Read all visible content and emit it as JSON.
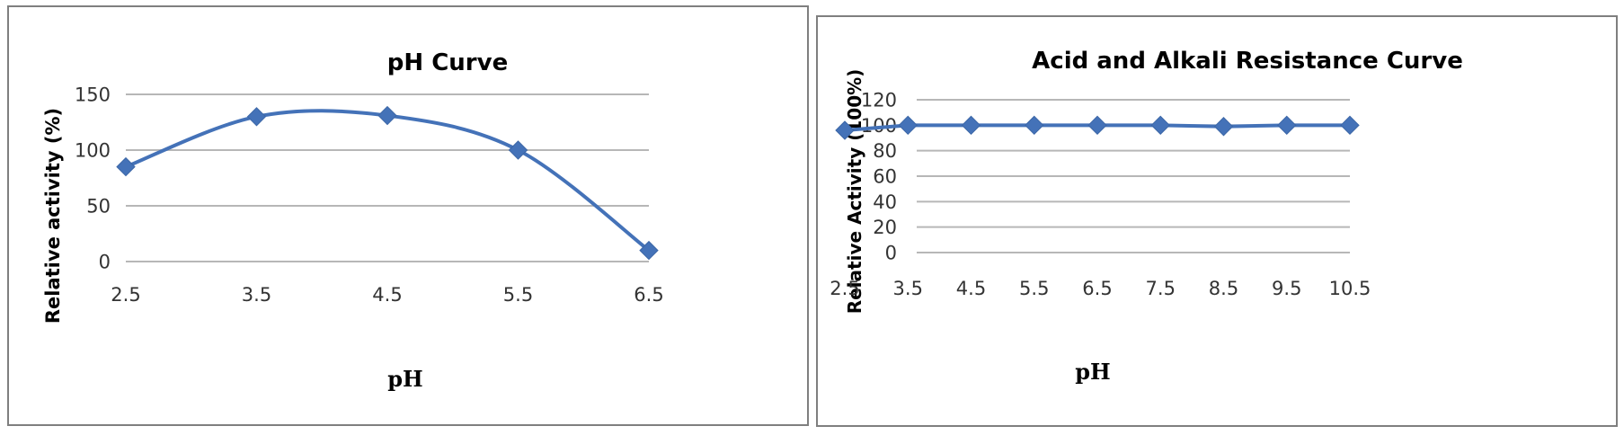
{
  "chart_data": [
    {
      "type": "line",
      "title": "pH Curve",
      "xlabel": "pH",
      "ylabel": "Relative activity (%)",
      "categories": [
        "2.5",
        "3.5",
        "4.5",
        "5.5",
        "6.5"
      ],
      "yticks": [
        "0",
        "50",
        "100",
        "150"
      ],
      "ylim": [
        0,
        150
      ],
      "smooth": true,
      "grid": true,
      "series": [
        {
          "values": [
            85,
            130,
            131,
            100,
            10
          ]
        }
      ],
      "color": "#4472b8"
    },
    {
      "type": "line",
      "title": "Acid and Alkali Resistance Curve",
      "xlabel": "pH",
      "ylabel": "Relative Activity (100%)",
      "categories": [
        "2.5",
        "3.5",
        "4.5",
        "5.5",
        "6.5",
        "7.5",
        "8.5",
        "9.5",
        "10.5"
      ],
      "yticks": [
        "0",
        "20",
        "40",
        "60",
        "80",
        "100",
        "120"
      ],
      "ylim": [
        0,
        120
      ],
      "smooth": false,
      "grid": true,
      "series": [
        {
          "values": [
            96,
            100,
            100,
            100,
            100,
            100,
            99,
            100,
            100
          ]
        }
      ],
      "color": "#4472b8"
    }
  ]
}
